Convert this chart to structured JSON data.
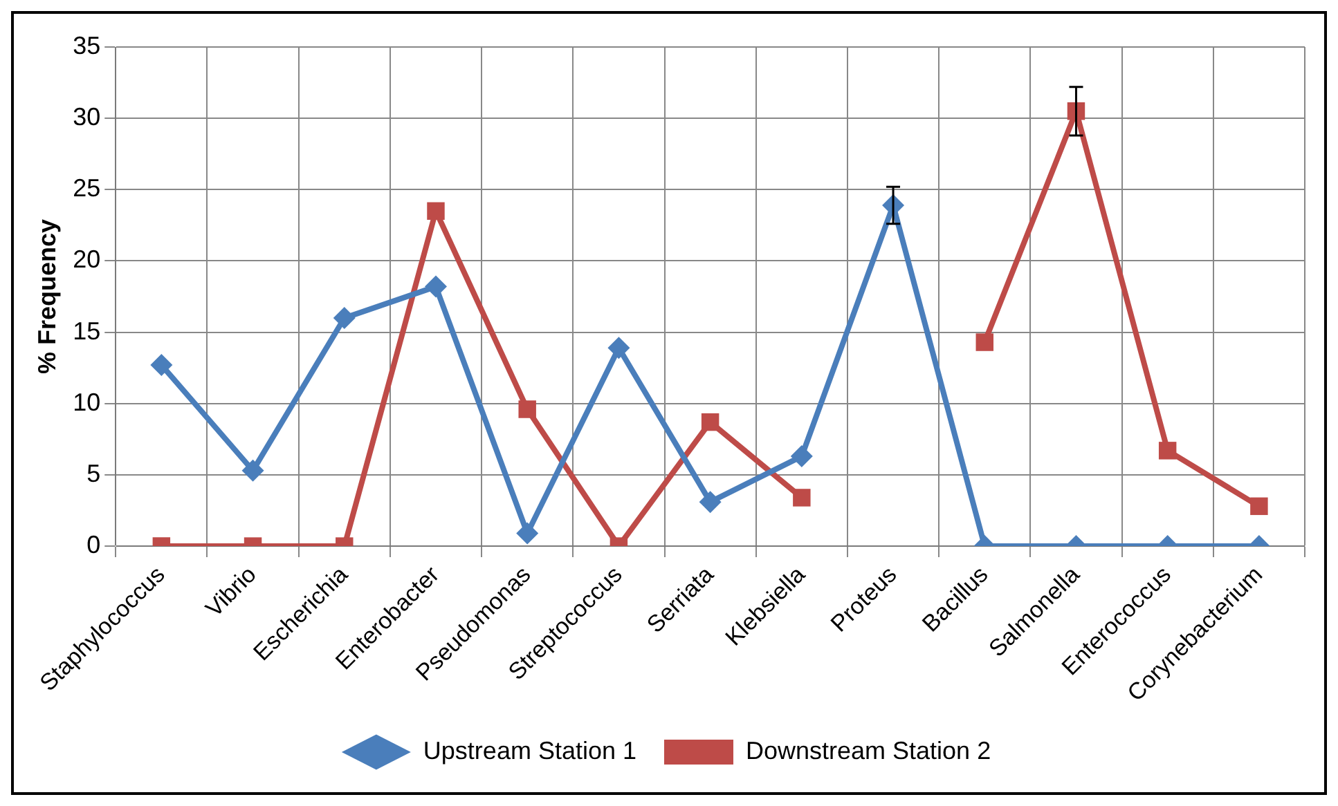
{
  "chart_data": {
    "type": "line",
    "ylabel": "% Frequency",
    "categories": [
      "Staphylococcus",
      "Vibrio",
      "Escherichia",
      "Enterobacter",
      "Pseudomonas",
      "Streptococcus",
      "Serriata",
      "Klebsiella",
      "Proteus",
      "Bacillus",
      "Salmonella",
      "Enterococcus",
      "Corynebacterium"
    ],
    "series": [
      {
        "name": "Upstream Station 1",
        "color": "#4a7ebb",
        "marker": "diamond",
        "values": [
          12.7,
          5.3,
          16.0,
          18.2,
          0.9,
          13.9,
          3.1,
          6.3,
          23.9,
          0,
          0,
          0,
          0
        ],
        "errors": [
          null,
          null,
          null,
          null,
          null,
          null,
          null,
          null,
          1.3,
          null,
          null,
          null,
          null
        ]
      },
      {
        "name": "Downstream Station 2",
        "color": "#be4b48",
        "marker": "square",
        "values": [
          0,
          0,
          0,
          23.5,
          9.6,
          0,
          8.7,
          3.4,
          null,
          14.3,
          30.5,
          6.7,
          2.8
        ],
        "errors": [
          null,
          null,
          null,
          null,
          null,
          null,
          null,
          null,
          null,
          null,
          1.7,
          null,
          null
        ]
      }
    ],
    "ylim": [
      0,
      35
    ],
    "yticks": [
      0,
      5,
      10,
      15,
      20,
      25,
      30,
      35
    ],
    "grid": true,
    "legend": "bottom"
  }
}
